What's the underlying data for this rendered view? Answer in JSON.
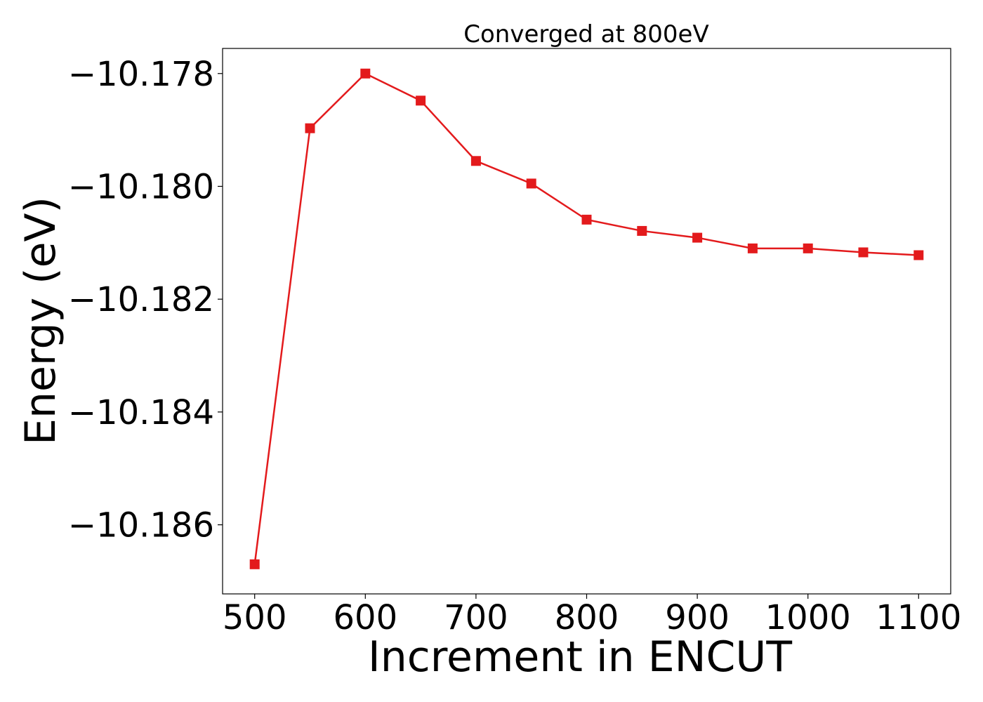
{
  "chart_data": {
    "type": "line",
    "title": "Converged at 800eV",
    "xlabel": "Increment in ENCUT",
    "ylabel": "Energy (eV)",
    "x": [
      500,
      550,
      600,
      650,
      700,
      750,
      800,
      850,
      900,
      950,
      1000,
      1050,
      1100
    ],
    "series": [
      {
        "values": [
          -10.1867,
          -10.17897,
          -10.178,
          -10.17848,
          -10.17955,
          -10.17995,
          -10.18059,
          -10.18079,
          -10.18091,
          -10.1811,
          -10.1811,
          -10.18117,
          -10.18122
        ],
        "color": "#e31a1c",
        "marker": "square"
      }
    ],
    "xlim": [
      471,
      1129
    ],
    "ylim": [
      -10.187225,
      -10.177555
    ],
    "xticks": [
      500,
      600,
      700,
      800,
      900,
      1000,
      1100
    ],
    "xtick_labels": [
      "500",
      "600",
      "700",
      "800",
      "900",
      "1000",
      "1100"
    ],
    "yticks": [
      -10.178,
      -10.18,
      -10.182,
      -10.184,
      -10.186
    ],
    "ytick_labels": [
      "−10.178",
      "−10.180",
      "−10.182",
      "−10.184",
      "−10.186"
    ],
    "grid": false,
    "legend": "none"
  }
}
